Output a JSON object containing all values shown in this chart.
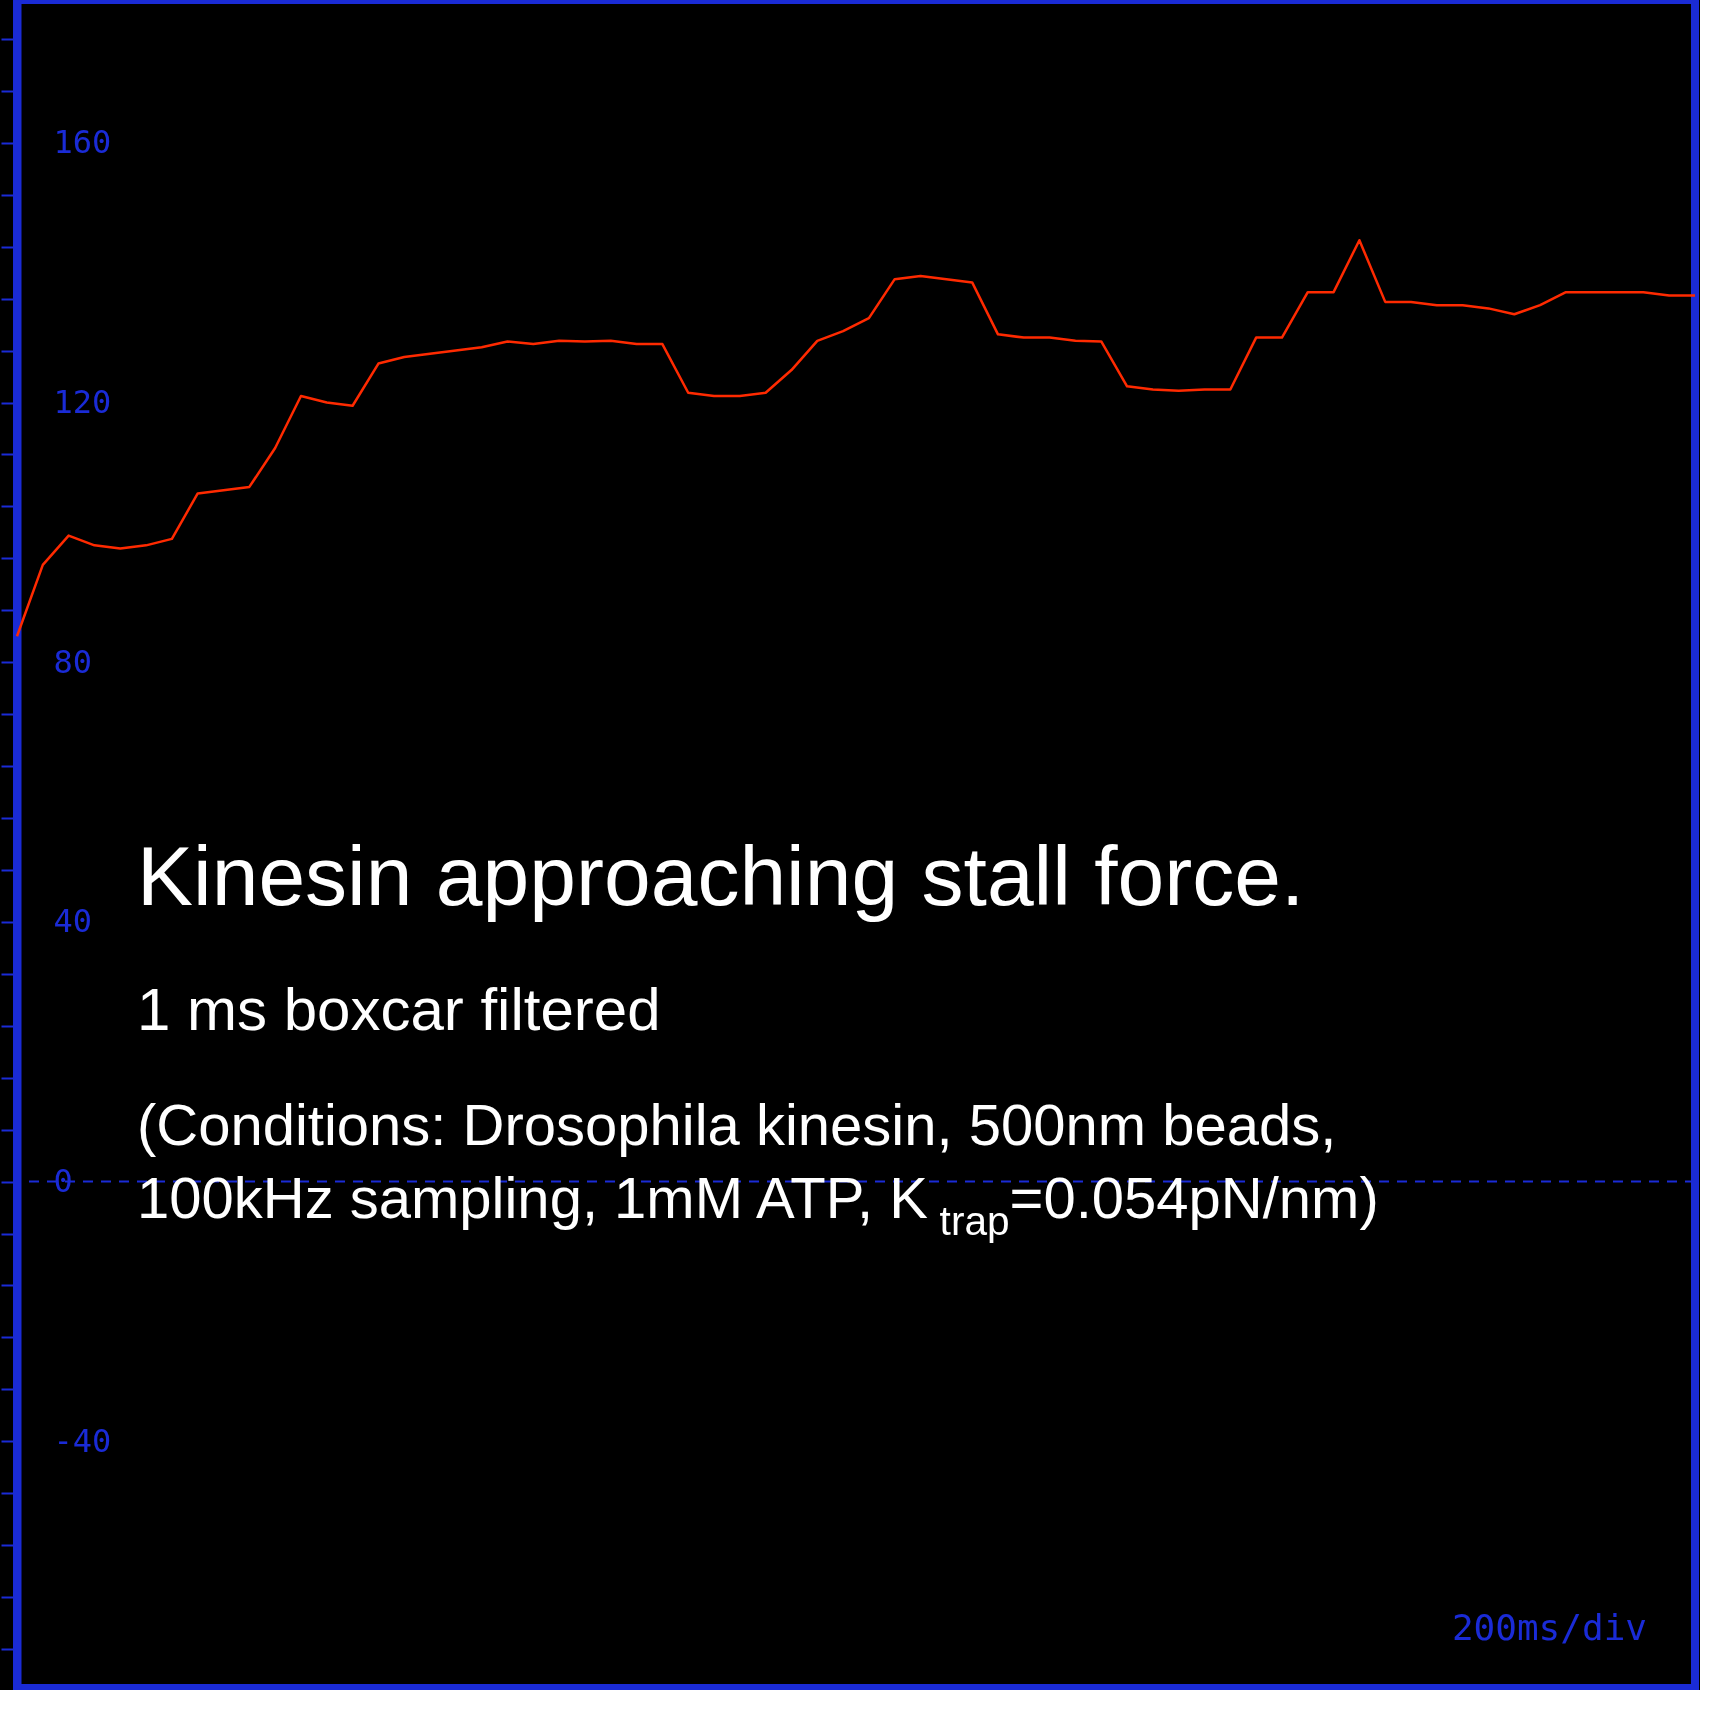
{
  "chart_data": {
    "type": "line",
    "title": "Kinesin approaching stall force.",
    "subtitle": "1 ms boxcar filtered",
    "annotations": [
      "(Conditions: Drosophila kinesin, 500nm beads,",
      "100kHz sampling, 1mM ATP, K$_{trap}$=0.054pN/nm)",
      "200ms/div"
    ],
    "categories": [
      null,
      null,
      null,
      null,
      null,
      null,
      null,
      null,
      null,
      null,
      null,
      null,
      null,
      null,
      null,
      null,
      null,
      null,
      null,
      null,
      null,
      null,
      null,
      null,
      null,
      null,
      null,
      null,
      null,
      null,
      null,
      null,
      null,
      null,
      null,
      null,
      null,
      null,
      null,
      null,
      null,
      null,
      null,
      null,
      null,
      null,
      null,
      null,
      null,
      null,
      null,
      null,
      null,
      null,
      null,
      null,
      null,
      null,
      null,
      null,
      null,
      null,
      null,
      null,
      null,
      null
    ],
    "series": [
      {
        "color": "#ff2a00",
        "values": [
          84,
          95,
          99.5,
          98,
          97.5,
          98,
          99,
          106,
          106.5,
          107,
          113,
          121,
          120,
          119.5,
          126,
          127,
          127.5,
          128,
          128.5,
          129.4,
          129,
          129.5,
          129.4,
          129.5,
          129,
          129,
          121.5,
          121,
          121,
          121.5,
          125,
          129.5,
          131,
          133,
          139,
          139.5,
          139,
          138.5,
          130.5,
          130,
          130,
          129.5,
          129.4,
          122.5,
          122,
          121.8,
          122,
          122,
          130,
          130,
          137,
          137,
          145,
          135.5,
          135.5,
          135,
          135,
          134.5,
          133.6,
          135,
          137,
          137,
          137,
          137,
          136.5,
          136.5
        ]
      }
    ],
    "ylim": [
      -78,
      182
    ],
    "yticks": [
      {
        "value": -72,
        "label": null
      },
      {
        "value": -64,
        "label": null
      },
      {
        "value": -56,
        "label": null
      },
      {
        "value": -48,
        "label": null
      },
      {
        "value": -40,
        "label": "-40"
      },
      {
        "value": -32,
        "label": null
      },
      {
        "value": -24,
        "label": null
      },
      {
        "value": -16,
        "label": null
      },
      {
        "value": -8,
        "label": null
      },
      {
        "value": 0,
        "label": "0"
      },
      {
        "value": 8,
        "label": null
      },
      {
        "value": 16,
        "label": null
      },
      {
        "value": 24,
        "label": null
      },
      {
        "value": 32,
        "label": null
      },
      {
        "value": 40,
        "label": "40"
      },
      {
        "value": 48,
        "label": null
      },
      {
        "value": 56,
        "label": null
      },
      {
        "value": 64,
        "label": null
      },
      {
        "value": 72,
        "label": null
      },
      {
        "value": 80,
        "label": "80"
      },
      {
        "value": 88,
        "label": null
      },
      {
        "value": 96,
        "label": null
      },
      {
        "value": 104,
        "label": null
      },
      {
        "value": 112,
        "label": null
      },
      {
        "value": 120,
        "label": "120"
      },
      {
        "value": 128,
        "label": null
      },
      {
        "value": 136,
        "label": null
      },
      {
        "value": 144,
        "label": null
      },
      {
        "value": 152,
        "label": null
      },
      {
        "value": 160,
        "label": "160"
      },
      {
        "value": 168,
        "label": null
      },
      {
        "value": 176,
        "label": null
      }
    ],
    "ref_lines": [
      {
        "axis": "y",
        "value": 0,
        "color": "#1a2bd6",
        "line_style": "dashed"
      }
    ],
    "grid": false,
    "legend": false,
    "marker": "none",
    "line_style": "solid"
  }
}
